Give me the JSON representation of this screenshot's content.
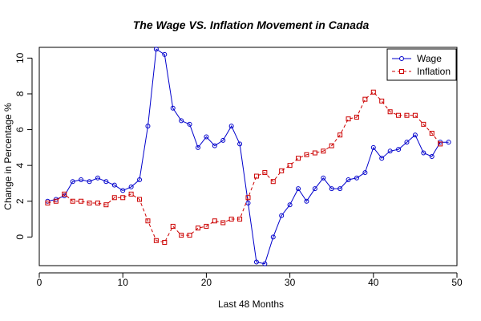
{
  "chart_data": {
    "type": "line",
    "title": "The Wage VS. Inflation Movement in Canada",
    "xlabel": "Last 48 Months",
    "ylabel": "Change in Percentage %",
    "xlim": [
      0,
      50
    ],
    "ylim": [
      -1.6,
      10.6
    ],
    "x_ticks": [
      0,
      10,
      20,
      30,
      40,
      50
    ],
    "y_ticks": [
      0,
      2,
      4,
      6,
      8,
      10
    ],
    "grid": false,
    "legend_position": "top-right",
    "series": [
      {
        "name": "Wage",
        "color": "#0000cc",
        "line_style": "solid",
        "marker": "circle",
        "x": [
          1,
          2,
          3,
          4,
          5,
          6,
          7,
          8,
          9,
          10,
          11,
          12,
          13,
          14,
          15,
          16,
          17,
          18,
          19,
          20,
          21,
          22,
          23,
          24,
          25,
          26,
          27,
          28,
          29,
          30,
          31,
          32,
          33,
          34,
          35,
          36,
          37,
          38,
          39,
          40,
          41,
          42,
          43,
          44,
          45,
          46,
          47,
          48,
          49
        ],
        "values": [
          2.0,
          2.1,
          2.3,
          3.1,
          3.2,
          3.1,
          3.3,
          3.1,
          2.9,
          2.6,
          2.8,
          3.2,
          6.2,
          10.5,
          10.2,
          7.2,
          6.5,
          6.3,
          5.0,
          5.6,
          5.1,
          5.4,
          6.2,
          5.2,
          1.9,
          -1.4,
          -1.5,
          0.0,
          1.2,
          1.8,
          2.7,
          2.0,
          2.7,
          3.3,
          2.7,
          2.7,
          3.2,
          3.3,
          3.6,
          5.0,
          4.4,
          4.8,
          4.9,
          5.3,
          5.7,
          4.7,
          4.5,
          5.3,
          5.3
        ]
      },
      {
        "name": "Inflation",
        "color": "#cc0000",
        "line_style": "dashed",
        "marker": "square",
        "x": [
          1,
          2,
          3,
          4,
          5,
          6,
          7,
          8,
          9,
          10,
          11,
          12,
          13,
          14,
          15,
          16,
          17,
          18,
          19,
          20,
          21,
          22,
          23,
          24,
          25,
          26,
          27,
          28,
          29,
          30,
          31,
          32,
          33,
          34,
          35,
          36,
          37,
          38,
          39,
          40,
          41,
          42,
          43,
          44,
          45,
          46,
          47,
          48
        ],
        "values": [
          1.9,
          2.0,
          2.4,
          2.0,
          2.0,
          1.9,
          1.9,
          1.8,
          2.2,
          2.2,
          2.4,
          2.1,
          0.9,
          -0.2,
          -0.3,
          0.6,
          0.1,
          0.1,
          0.5,
          0.6,
          0.9,
          0.8,
          1.0,
          1.0,
          2.2,
          3.4,
          3.6,
          3.1,
          3.7,
          4.0,
          4.4,
          4.6,
          4.7,
          4.8,
          5.1,
          5.7,
          6.6,
          6.7,
          7.7,
          8.1,
          7.6,
          7.0,
          6.8,
          6.8,
          6.8,
          6.3,
          5.8,
          5.2
        ]
      }
    ]
  }
}
